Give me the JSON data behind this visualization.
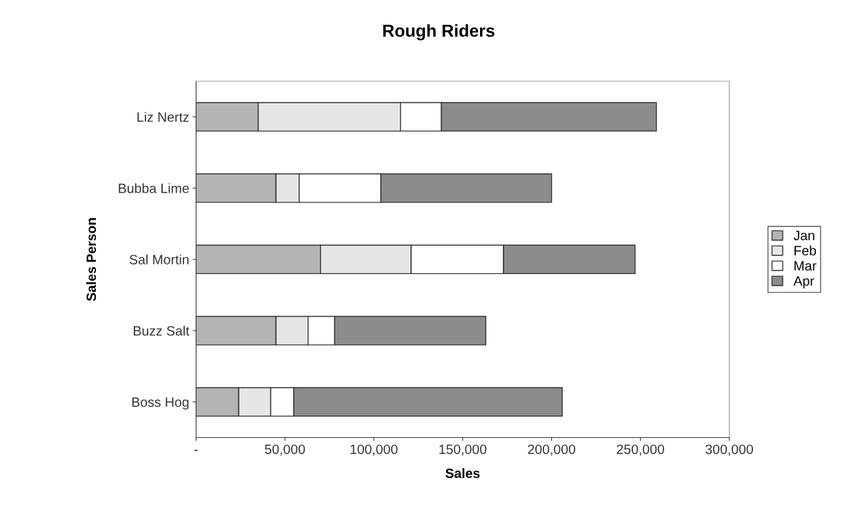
{
  "chart_data": {
    "type": "bar",
    "title": "Rough Riders",
    "xlabel": "Sales",
    "ylabel": "Sales Person",
    "orientation": "horizontal",
    "stacked": true,
    "categories": [
      "Liz Nertz",
      "Bubba Lime",
      "Sal Mortin",
      "Buzz Salt",
      "Boss Hog"
    ],
    "series": [
      {
        "name": "Jan",
        "color": "#b4b4b4",
        "values": [
          35000,
          45000,
          70000,
          45000,
          24000
        ]
      },
      {
        "name": "Feb",
        "color": "#e6e6e6",
        "values": [
          80000,
          13000,
          51000,
          18000,
          18000
        ]
      },
      {
        "name": "Mar",
        "color": "#ffffff",
        "values": [
          23000,
          46000,
          52000,
          15000,
          13000
        ]
      },
      {
        "name": "Apr",
        "color": "#8c8c8c",
        "values": [
          121000,
          96000,
          74000,
          85000,
          151000
        ]
      }
    ],
    "xlim": [
      0,
      300000
    ],
    "xticks": [
      {
        "value": 0,
        "label": "-"
      },
      {
        "value": 50000,
        "label": "50,000"
      },
      {
        "value": 100000,
        "label": "100,000"
      },
      {
        "value": 150000,
        "label": "150,000"
      },
      {
        "value": 200000,
        "label": "200,000"
      },
      {
        "value": 250000,
        "label": "250,000"
      },
      {
        "value": 300000,
        "label": "300,000"
      }
    ],
    "legend": "right",
    "grid": false
  }
}
